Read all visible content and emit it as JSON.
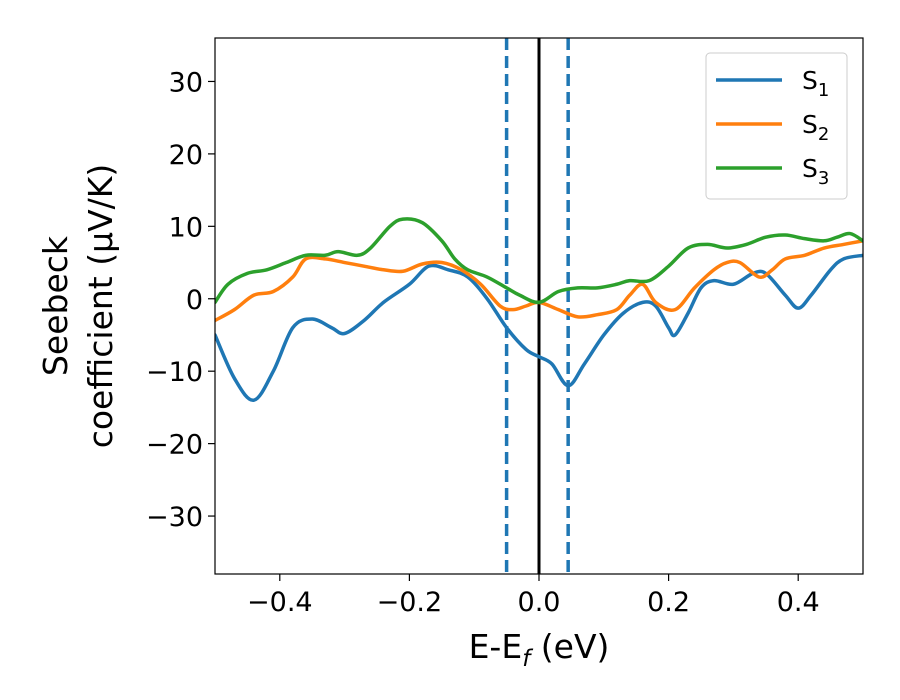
{
  "chart_data": {
    "type": "line",
    "xlabel": {
      "main": "E-E",
      "sub": "f",
      "tail": " (eV)"
    },
    "ylabel": {
      "line1": "Seebeck",
      "line2": "coefficient  (μV/K)"
    },
    "xlim": [
      -0.5,
      0.5
    ],
    "ylim": [
      -38,
      36
    ],
    "xticks": [
      -0.4,
      -0.2,
      0.0,
      0.2,
      0.4
    ],
    "xtick_labels": [
      "−0.4",
      "−0.2",
      "0.0",
      "0.2",
      "0.4"
    ],
    "yticks": [
      -30,
      -20,
      -10,
      0,
      10,
      20,
      30
    ],
    "ytick_labels": [
      "−30",
      "−20",
      "−10",
      "0",
      "10",
      "20",
      "30"
    ],
    "grid": false,
    "legend_position": "top-right",
    "vertical_lines": [
      {
        "x": 0.0,
        "style": "solid",
        "color": "#000000"
      },
      {
        "x": -0.05,
        "style": "dashed",
        "color": "#1f77b4"
      },
      {
        "x": 0.045,
        "style": "dashed",
        "color": "#1f77b4"
      }
    ],
    "series": [
      {
        "name": "S",
        "sub": "1",
        "color": "#1f77b4",
        "points": [
          [
            -0.5,
            -5
          ],
          [
            -0.47,
            -11
          ],
          [
            -0.44,
            -14
          ],
          [
            -0.41,
            -10
          ],
          [
            -0.38,
            -4
          ],
          [
            -0.35,
            -2.8
          ],
          [
            -0.32,
            -4
          ],
          [
            -0.3,
            -4.8
          ],
          [
            -0.27,
            -3
          ],
          [
            -0.24,
            -0.5
          ],
          [
            -0.2,
            2
          ],
          [
            -0.17,
            4.5
          ],
          [
            -0.14,
            4
          ],
          [
            -0.11,
            3
          ],
          [
            -0.08,
            0
          ],
          [
            -0.05,
            -4
          ],
          [
            -0.02,
            -7
          ],
          [
            0.0,
            -8
          ],
          [
            0.02,
            -9
          ],
          [
            0.045,
            -12
          ],
          [
            0.07,
            -9
          ],
          [
            0.1,
            -5
          ],
          [
            0.13,
            -2
          ],
          [
            0.16,
            -0.5
          ],
          [
            0.18,
            -1
          ],
          [
            0.2,
            -4
          ],
          [
            0.21,
            -5
          ],
          [
            0.23,
            -2
          ],
          [
            0.25,
            1.5
          ],
          [
            0.27,
            2.5
          ],
          [
            0.3,
            2
          ],
          [
            0.33,
            3.5
          ],
          [
            0.35,
            3.5
          ],
          [
            0.38,
            0.5
          ],
          [
            0.4,
            -1.3
          ],
          [
            0.42,
            0.5
          ],
          [
            0.45,
            4
          ],
          [
            0.47,
            5.5
          ],
          [
            0.5,
            6
          ]
        ]
      },
      {
        "name": "S",
        "sub": "2",
        "color": "#ff7f0e",
        "points": [
          [
            -0.5,
            -3
          ],
          [
            -0.47,
            -1.5
          ],
          [
            -0.44,
            0.5
          ],
          [
            -0.41,
            1
          ],
          [
            -0.38,
            3
          ],
          [
            -0.36,
            5.5
          ],
          [
            -0.33,
            5.5
          ],
          [
            -0.3,
            5
          ],
          [
            -0.27,
            4.5
          ],
          [
            -0.24,
            4
          ],
          [
            -0.21,
            3.8
          ],
          [
            -0.18,
            4.8
          ],
          [
            -0.15,
            5
          ],
          [
            -0.12,
            4
          ],
          [
            -0.09,
            2
          ],
          [
            -0.06,
            -1
          ],
          [
            -0.04,
            -1.5
          ],
          [
            -0.02,
            -1
          ],
          [
            0.0,
            -0.5
          ],
          [
            0.03,
            -1.5
          ],
          [
            0.06,
            -2.5
          ],
          [
            0.09,
            -2.2
          ],
          [
            0.12,
            -1.5
          ],
          [
            0.14,
            0.5
          ],
          [
            0.16,
            2
          ],
          [
            0.18,
            -0.5
          ],
          [
            0.21,
            -1.5
          ],
          [
            0.24,
            1.5
          ],
          [
            0.27,
            4
          ],
          [
            0.29,
            5
          ],
          [
            0.31,
            5
          ],
          [
            0.34,
            3
          ],
          [
            0.36,
            4
          ],
          [
            0.38,
            5.5
          ],
          [
            0.41,
            6
          ],
          [
            0.44,
            7
          ],
          [
            0.47,
            7.5
          ],
          [
            0.5,
            8
          ]
        ]
      },
      {
        "name": "S",
        "sub": "3",
        "color": "#2ca02c",
        "points": [
          [
            -0.5,
            -0.5
          ],
          [
            -0.48,
            2
          ],
          [
            -0.45,
            3.5
          ],
          [
            -0.42,
            4
          ],
          [
            -0.39,
            5
          ],
          [
            -0.36,
            6
          ],
          [
            -0.33,
            6
          ],
          [
            -0.31,
            6.5
          ],
          [
            -0.28,
            6
          ],
          [
            -0.26,
            7
          ],
          [
            -0.23,
            10
          ],
          [
            -0.21,
            11
          ],
          [
            -0.18,
            10.5
          ],
          [
            -0.15,
            8
          ],
          [
            -0.13,
            5.5
          ],
          [
            -0.11,
            4
          ],
          [
            -0.08,
            3
          ],
          [
            -0.05,
            1.5
          ],
          [
            -0.03,
            0.5
          ],
          [
            0.0,
            -0.5
          ],
          [
            0.03,
            1
          ],
          [
            0.06,
            1.5
          ],
          [
            0.09,
            1.5
          ],
          [
            0.12,
            2
          ],
          [
            0.14,
            2.5
          ],
          [
            0.17,
            2.5
          ],
          [
            0.2,
            4.5
          ],
          [
            0.23,
            7
          ],
          [
            0.26,
            7.5
          ],
          [
            0.29,
            7
          ],
          [
            0.32,
            7.5
          ],
          [
            0.35,
            8.5
          ],
          [
            0.38,
            8.8
          ],
          [
            0.41,
            8.3
          ],
          [
            0.44,
            8
          ],
          [
            0.46,
            8.5
          ],
          [
            0.48,
            9
          ],
          [
            0.5,
            8
          ]
        ]
      }
    ]
  }
}
